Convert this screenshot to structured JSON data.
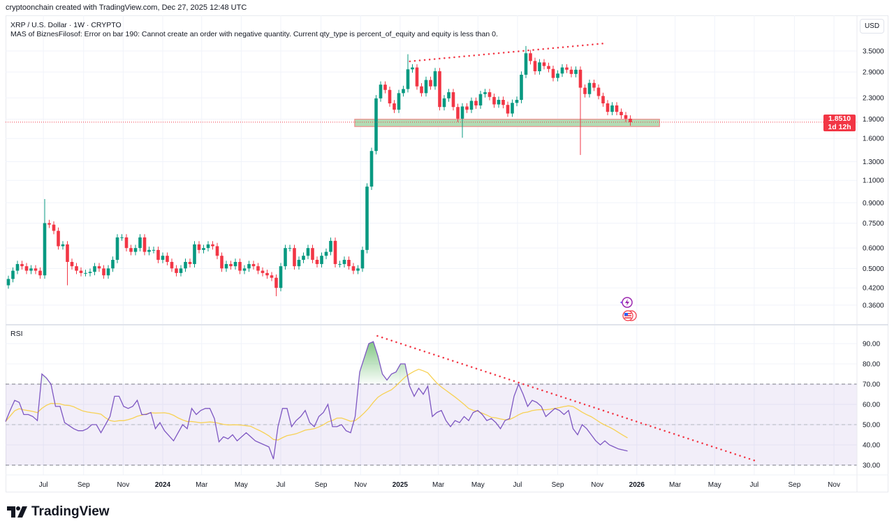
{
  "header": {
    "attribution": "cryptoonchain created with TradingView.com, Dec 27, 2025 12:48 UTC"
  },
  "legend": {
    "symbol": "XRP / U.S. Dollar · 1W · CRYPTO",
    "strategy_error": "MAS of BiznesFilosof: Error on bar 190: Cannot create an order with negative quantity. Current qty_type is percent_of_equity and equity is less than 0."
  },
  "currency_button": "USD",
  "last_price": {
    "value": "1.8510",
    "countdown": "1d 12h",
    "price": 1.851
  },
  "rsi_pane": {
    "label": "RSI"
  },
  "footer": {
    "logo_text": "TradingView"
  },
  "colors": {
    "up": "#089981",
    "down": "#f23645",
    "rsi": "#7e57c2",
    "rsi_ma": "#f7d154",
    "trendline": "#f23645",
    "zone_fill": "#a5d6a7",
    "rsi_band": "#7e57c2"
  },
  "events": [
    {
      "icon": "lightning-icon"
    },
    {
      "icon": "us-flag-icon"
    }
  ],
  "chart_data": [
    {
      "type": "candlestick",
      "interval": "1W",
      "first_bar": "2023-05-08",
      "last_bar": "2025-12-22",
      "y_scale": "log",
      "ylim": [
        0.33,
        3.9
      ],
      "y_ticks": [
        "3.5000",
        "2.9000",
        "2.3000",
        "1.9000",
        "1.6000",
        "1.3000",
        "1.1000",
        "0.9000",
        "0.7500",
        "0.6000",
        "0.5000",
        "0.4200",
        "0.3600"
      ],
      "x_ticks": [
        {
          "label": "Jul",
          "date": "2023-07-01"
        },
        {
          "label": "Sep",
          "date": "2023-09-01"
        },
        {
          "label": "Nov",
          "date": "2023-11-01"
        },
        {
          "label": "2024",
          "date": "2024-01-01",
          "bold": true
        },
        {
          "label": "Mar",
          "date": "2024-03-01"
        },
        {
          "label": "May",
          "date": "2024-05-01"
        },
        {
          "label": "Jul",
          "date": "2024-07-01"
        },
        {
          "label": "Sep",
          "date": "2024-09-01"
        },
        {
          "label": "Nov",
          "date": "2024-11-01"
        },
        {
          "label": "2025",
          "date": "2025-01-01",
          "bold": true
        },
        {
          "label": "Mar",
          "date": "2025-03-01"
        },
        {
          "label": "May",
          "date": "2025-05-01"
        },
        {
          "label": "Jul",
          "date": "2025-07-01"
        },
        {
          "label": "Sep",
          "date": "2025-09-01"
        },
        {
          "label": "Nov",
          "date": "2025-11-01"
        },
        {
          "label": "2026",
          "date": "2026-01-01",
          "bold": true
        },
        {
          "label": "Mar",
          "date": "2026-03-01"
        },
        {
          "label": "May",
          "date": "2026-05-01"
        },
        {
          "label": "Jul",
          "date": "2026-07-01"
        },
        {
          "label": "Sep",
          "date": "2026-09-01"
        },
        {
          "label": "Nov",
          "date": "2026-11-01"
        }
      ],
      "first_open": 0.43,
      "close": [
        0.455,
        0.49,
        0.52,
        0.51,
        0.49,
        0.5,
        0.49,
        0.47,
        0.75,
        0.74,
        0.7,
        0.61,
        0.62,
        0.53,
        0.51,
        0.49,
        0.48,
        0.48,
        0.485,
        0.51,
        0.5,
        0.47,
        0.5,
        0.54,
        0.66,
        0.66,
        0.6,
        0.58,
        0.6,
        0.66,
        0.58,
        0.59,
        0.59,
        0.54,
        0.56,
        0.53,
        0.5,
        0.48,
        0.5,
        0.53,
        0.52,
        0.62,
        0.59,
        0.6,
        0.62,
        0.61,
        0.56,
        0.5,
        0.52,
        0.51,
        0.53,
        0.49,
        0.5,
        0.52,
        0.51,
        0.49,
        0.48,
        0.47,
        0.46,
        0.42,
        0.51,
        0.6,
        0.6,
        0.51,
        0.54,
        0.56,
        0.6,
        0.54,
        0.52,
        0.56,
        0.58,
        0.64,
        0.52,
        0.52,
        0.54,
        0.51,
        0.49,
        0.5,
        0.59,
        1.04,
        1.43,
        2.29,
        2.59,
        2.47,
        2.19,
        2.07,
        2.4,
        2.49,
        2.97,
        3.02,
        2.55,
        2.4,
        2.7,
        2.55,
        2.92,
        2.12,
        2.29,
        2.42,
        2.12,
        1.91,
        2.13,
        2.07,
        2.24,
        2.15,
        2.38,
        2.42,
        2.32,
        2.17,
        2.26,
        2.16,
        2.0,
        2.2,
        2.26,
        2.83,
        3.43,
        3.2,
        2.92,
        3.16,
        3.06,
        2.98,
        2.75,
        2.86,
        3.02,
        2.96,
        2.85,
        2.96,
        2.52,
        2.38,
        2.63,
        2.52,
        2.34,
        2.19,
        2.03,
        2.15,
        2.03,
        1.97,
        1.91,
        1.85
      ],
      "notable_wicks": [
        {
          "index": 8,
          "high": 0.93
        },
        {
          "index": 13,
          "low": 0.43
        },
        {
          "index": 59,
          "low": 0.39
        },
        {
          "index": 88,
          "high": 3.4
        },
        {
          "index": 100,
          "low": 1.61
        },
        {
          "index": 114,
          "high": 3.66
        },
        {
          "index": 126,
          "low": 1.38
        }
      ],
      "support_zone": {
        "from": "2024-10-23",
        "to": "2026-02-05",
        "low": 1.78,
        "high": 1.9
      },
      "trendline": {
        "from": {
          "date": "2025-01-16",
          "value": 3.19
        },
        "to": {
          "date": "2025-11-14",
          "value": 3.75
        },
        "style": "dotted"
      }
    },
    {
      "type": "line",
      "title": "RSI",
      "ylim": [
        25,
        97
      ],
      "y_ticks": [
        "90.00",
        "80.00",
        "70.00",
        "60.00",
        "50.00",
        "40.00",
        "30.00"
      ],
      "bands": {
        "upper": 70,
        "middle": 50,
        "lower": 30
      },
      "rsi": [
        51.5,
        57,
        62,
        61,
        55,
        55,
        54,
        52,
        75,
        73,
        70,
        59,
        59,
        51,
        49.5,
        48,
        47,
        47,
        48,
        50,
        50,
        46,
        50,
        54,
        64,
        64,
        59,
        58,
        59,
        62,
        55,
        55,
        56,
        48,
        51,
        47,
        44.5,
        42,
        46,
        50,
        48,
        58,
        55,
        57,
        58,
        58,
        53,
        41.5,
        44,
        43,
        45,
        42,
        44,
        46,
        44,
        42,
        41,
        40,
        39,
        33,
        49,
        58,
        58,
        49,
        52,
        54,
        57,
        51,
        49,
        54,
        56,
        60,
        49,
        49,
        50,
        47,
        46,
        54,
        76,
        83,
        90,
        91,
        84,
        75,
        72,
        75,
        76,
        80,
        80,
        69,
        64,
        68,
        65,
        69,
        54,
        56,
        57,
        52,
        49,
        52,
        51,
        54,
        52,
        56,
        57,
        55,
        52,
        53,
        51,
        48,
        52,
        53,
        64,
        70,
        65,
        59,
        62,
        61,
        59,
        54,
        56,
        58,
        57,
        55,
        57,
        48,
        45,
        50,
        48,
        45,
        42,
        40,
        42,
        40,
        39,
        38,
        37.5,
        37
      ],
      "ma_length": 14,
      "trendline": {
        "from": {
          "date": "2024-11-27",
          "value": 93.8
        },
        "to": {
          "date": "2026-07-04",
          "value": 32
        },
        "style": "dotted"
      }
    }
  ]
}
